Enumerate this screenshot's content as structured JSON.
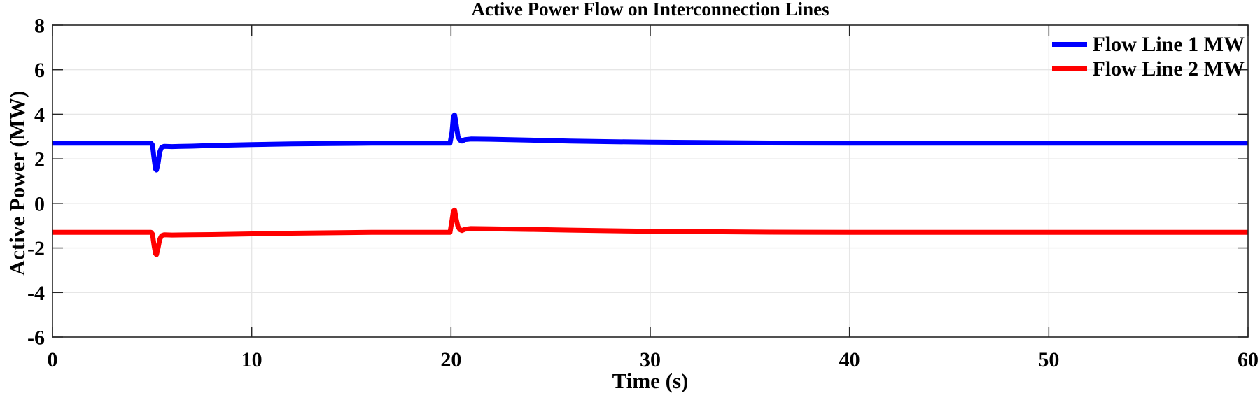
{
  "chart_data": {
    "type": "line",
    "title": "Active Power Flow on Interconnection Lines",
    "xlabel": "Time (s)",
    "ylabel": "Active Power (MW)",
    "xlim": [
      0,
      60
    ],
    "ylim": [
      -6,
      8
    ],
    "x_ticks": [
      0,
      10,
      20,
      30,
      40,
      50,
      60
    ],
    "y_ticks": [
      -6,
      -4,
      -2,
      0,
      2,
      4,
      6,
      8
    ],
    "grid": true,
    "legend_position": "top-right-inside",
    "colors": {
      "grid": "#E6E6E6",
      "axis": "#262626",
      "text": "#000000",
      "background": "#FFFFFF",
      "line1": "#0000FF",
      "line2": "#FF0000"
    },
    "series": [
      {
        "name": "Flow Line 1 MW",
        "color": "#0000FF",
        "points": [
          [
            0,
            2.7
          ],
          [
            4.95,
            2.7
          ],
          [
            5.02,
            2.62
          ],
          [
            5.1,
            2.0
          ],
          [
            5.17,
            1.55
          ],
          [
            5.22,
            1.5
          ],
          [
            5.3,
            1.8
          ],
          [
            5.38,
            2.3
          ],
          [
            5.48,
            2.52
          ],
          [
            5.6,
            2.56
          ],
          [
            6,
            2.55
          ],
          [
            7,
            2.57
          ],
          [
            8,
            2.6
          ],
          [
            10,
            2.64
          ],
          [
            12,
            2.67
          ],
          [
            14,
            2.69
          ],
          [
            16,
            2.7
          ],
          [
            19.95,
            2.7
          ],
          [
            20.05,
            3.2
          ],
          [
            20.12,
            3.9
          ],
          [
            20.18,
            3.97
          ],
          [
            20.26,
            3.55
          ],
          [
            20.35,
            3.0
          ],
          [
            20.45,
            2.84
          ],
          [
            20.55,
            2.8
          ],
          [
            20.7,
            2.86
          ],
          [
            21,
            2.89
          ],
          [
            22,
            2.88
          ],
          [
            24,
            2.84
          ],
          [
            26,
            2.8
          ],
          [
            28,
            2.77
          ],
          [
            30,
            2.75
          ],
          [
            33,
            2.73
          ],
          [
            36,
            2.71
          ],
          [
            40,
            2.7
          ],
          [
            60,
            2.7
          ]
        ]
      },
      {
        "name": "Flow Line 2 MW",
        "color": "#FF0000",
        "points": [
          [
            0,
            -1.3
          ],
          [
            4.95,
            -1.3
          ],
          [
            5.02,
            -1.38
          ],
          [
            5.1,
            -1.9
          ],
          [
            5.17,
            -2.25
          ],
          [
            5.22,
            -2.3
          ],
          [
            5.3,
            -2.0
          ],
          [
            5.38,
            -1.62
          ],
          [
            5.48,
            -1.45
          ],
          [
            5.6,
            -1.41
          ],
          [
            6,
            -1.42
          ],
          [
            7,
            -1.41
          ],
          [
            8,
            -1.4
          ],
          [
            10,
            -1.37
          ],
          [
            12,
            -1.34
          ],
          [
            14,
            -1.32
          ],
          [
            16,
            -1.3
          ],
          [
            19.95,
            -1.3
          ],
          [
            20.05,
            -0.75
          ],
          [
            20.12,
            -0.35
          ],
          [
            20.18,
            -0.3
          ],
          [
            20.26,
            -0.7
          ],
          [
            20.35,
            -1.05
          ],
          [
            20.45,
            -1.18
          ],
          [
            20.55,
            -1.22
          ],
          [
            20.7,
            -1.16
          ],
          [
            21,
            -1.13
          ],
          [
            22,
            -1.14
          ],
          [
            24,
            -1.17
          ],
          [
            26,
            -1.2
          ],
          [
            28,
            -1.23
          ],
          [
            30,
            -1.25
          ],
          [
            33,
            -1.27
          ],
          [
            36,
            -1.29
          ],
          [
            40,
            -1.3
          ],
          [
            60,
            -1.3
          ]
        ]
      }
    ]
  }
}
